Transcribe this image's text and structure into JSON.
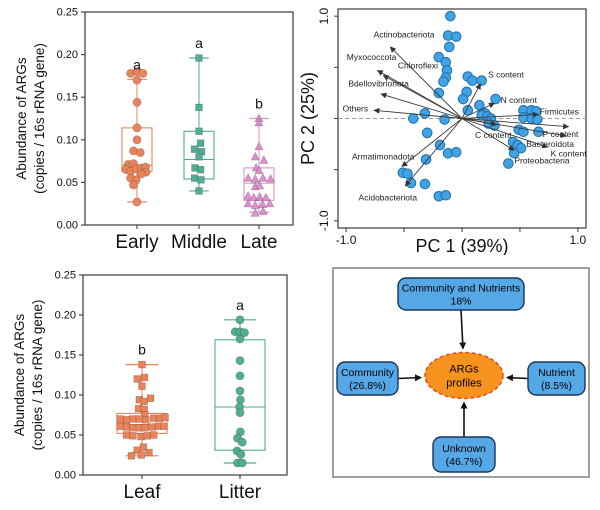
{
  "figure": {
    "background": "#ffffff"
  },
  "colors": {
    "axis": "#3a3a3a",
    "early_orange": "#E8845C",
    "middle_teal": "#4FAE93",
    "late_pink": "#DD90D0",
    "pca_point_fill": "#41A3E2",
    "pca_point_stroke": "#1F6FB0",
    "diagram_box_fill": "#55A7E6",
    "diagram_box_stroke": "#17375E",
    "diagram_ellipse_fill": "#F6921E",
    "diagram_ellipse_stroke": "#E8491D",
    "diagram_border": "#808080",
    "arrow_black": "#111111"
  },
  "chart_data": [
    {
      "id": "succession_boxplot",
      "type": "boxplot-scatter",
      "ylabel": [
        "Abundance of ARGs",
        "(copies / 16s rRNA gene)"
      ],
      "ylim": [
        0,
        0.25
      ],
      "yticks": [
        "0.00",
        "0.05",
        "0.10",
        "0.15",
        "0.20",
        "0.25"
      ],
      "groups": [
        {
          "label": "Early",
          "sig": "a",
          "marker": "circle",
          "color": "#E8845C",
          "box": {
            "lo": 0.027,
            "q1": 0.063,
            "median": 0.07,
            "q3": 0.114,
            "hi": 0.171
          },
          "points": [
            [
              -0.53,
              0.178
            ],
            [
              0,
              0.18
            ],
            [
              0.49,
              0.178
            ],
            [
              0,
              0.17
            ],
            [
              0,
              0.144
            ],
            [
              0,
              0.114
            ],
            [
              0,
              0.1
            ],
            [
              -0.29,
              0.087
            ],
            [
              0.27,
              0.085
            ],
            [
              -0.73,
              0.071
            ],
            [
              -0.29,
              0.072
            ],
            [
              -0.91,
              0.065
            ],
            [
              -0.53,
              0.063
            ],
            [
              -0.07,
              0.066
            ],
            [
              0.35,
              0.067
            ],
            [
              0.71,
              0.068
            ],
            [
              0.75,
              0.062
            ],
            [
              0.35,
              0.06
            ],
            [
              -0.53,
              0.055
            ],
            [
              -0.07,
              0.053
            ],
            [
              -0.29,
              0.047
            ],
            [
              0,
              0.027
            ]
          ]
        },
        {
          "label": "Middle",
          "sig": "a",
          "marker": "square",
          "color": "#4FAE93",
          "box": {
            "lo": 0.04,
            "q1": 0.054,
            "median": 0.077,
            "q3": 0.11,
            "hi": 0.196
          },
          "points": [
            [
              0,
              0.196
            ],
            [
              0,
              0.138
            ],
            [
              0,
              0.11
            ],
            [
              0.16,
              0.096
            ],
            [
              -0.44,
              0.089
            ],
            [
              0.25,
              0.086
            ],
            [
              0,
              0.08
            ],
            [
              -0.4,
              0.067
            ],
            [
              0.16,
              0.065
            ],
            [
              -0.44,
              0.055
            ],
            [
              0.2,
              0.053
            ],
            [
              0,
              0.04
            ]
          ]
        },
        {
          "label": "Late",
          "sig": "b",
          "marker": "triangle",
          "color": "#DD90D0",
          "box": {
            "lo": 0.015,
            "q1": 0.029,
            "median": 0.049,
            "q3": 0.067,
            "hi": 0.125
          },
          "points": [
            [
              0,
              0.125
            ],
            [
              0,
              0.12
            ],
            [
              0,
              0.092
            ],
            [
              -0.29,
              0.08
            ],
            [
              0.38,
              0.076
            ],
            [
              -0.22,
              0.067
            ],
            [
              0,
              0.064
            ],
            [
              -0.84,
              0.055
            ],
            [
              -0.29,
              0.054
            ],
            [
              0.31,
              0.055
            ],
            [
              0.89,
              0.054
            ],
            [
              -0.29,
              0.045
            ],
            [
              0.05,
              0.046
            ],
            [
              -0.84,
              0.034
            ],
            [
              -0.4,
              0.032
            ],
            [
              0.05,
              0.033
            ],
            [
              0.53,
              0.032
            ],
            [
              -0.84,
              0.025
            ],
            [
              -0.29,
              0.023
            ],
            [
              0.27,
              0.024
            ],
            [
              0.83,
              0.025
            ],
            [
              -0.29,
              0.014
            ],
            [
              0.31,
              0.016
            ]
          ]
        }
      ]
    },
    {
      "id": "pca_biplot",
      "type": "pca-biplot",
      "xlabel": "PC 1 (39%)",
      "ylabel": "PC 2 (25%)",
      "xlim": [
        -1.0,
        1.0
      ],
      "ylim": [
        -1.0,
        1.0
      ],
      "xtick_labels": [
        "-1.0",
        "1.0"
      ],
      "ytick_labels": [
        "-1.0",
        "1.0"
      ],
      "points": [
        [
          -0.1,
          1.0
        ],
        [
          -0.12,
          0.81
        ],
        [
          -0.05,
          0.8
        ],
        [
          -0.11,
          0.7
        ],
        [
          -0.2,
          0.6
        ],
        [
          -0.14,
          0.55
        ],
        [
          -0.13,
          0.47
        ],
        [
          -0.14,
          0.4
        ],
        [
          -0.16,
          0.36
        ],
        [
          0.05,
          0.41
        ],
        [
          0.09,
          0.37
        ],
        [
          0.04,
          0.26
        ],
        [
          0.01,
          0.19
        ],
        [
          0.17,
          0.37
        ],
        [
          -0.2,
          0.25
        ],
        [
          0.15,
          0.13
        ],
        [
          0.2,
          0.05
        ],
        [
          0.17,
          0.03
        ],
        [
          0.29,
          0.19
        ],
        [
          0.05,
          0.08
        ],
        [
          0.22,
          0.02
        ],
        [
          0.25,
          0.0
        ],
        [
          0.53,
          0.08
        ],
        [
          0.6,
          0.08
        ],
        [
          0.64,
          0.07
        ],
        [
          0.53,
          0.01
        ],
        [
          0.6,
          0.0
        ],
        [
          0.65,
          -0.01
        ],
        [
          -0.42,
          0.0
        ],
        [
          -0.32,
          0.05
        ],
        [
          -0.15,
          -0.01
        ],
        [
          -0.3,
          -0.14
        ],
        [
          0.23,
          -0.05
        ],
        [
          0.28,
          -0.07
        ],
        [
          0.49,
          -0.11
        ],
        [
          0.53,
          -0.13
        ],
        [
          0.66,
          -0.13
        ],
        [
          -0.19,
          -0.26
        ],
        [
          -0.12,
          -0.34
        ],
        [
          -0.05,
          -0.33
        ],
        [
          0.44,
          -0.23
        ],
        [
          0.48,
          -0.26
        ],
        [
          0.51,
          -0.29
        ],
        [
          0.45,
          -0.34
        ],
        [
          0.4,
          -0.44
        ],
        [
          -0.31,
          -0.4
        ],
        [
          -0.51,
          -0.53
        ],
        [
          -0.47,
          -0.54
        ],
        [
          -0.44,
          -0.63
        ],
        [
          -0.32,
          -0.64
        ],
        [
          -0.2,
          -0.76
        ],
        [
          -0.14,
          -0.75
        ]
      ],
      "arrows": [
        {
          "label": "Actinobacteriota",
          "tip": [
            -0.62,
            0.7
          ],
          "label_pos": [
            -0.5,
            0.82
          ]
        },
        {
          "label": "Myxococcota",
          "tip": [
            -0.73,
            0.47
          ],
          "label_pos": [
            -0.78,
            0.6
          ]
        },
        {
          "label": "Chloroflexi",
          "tip": [
            -0.68,
            0.42
          ],
          "label_pos": [
            -0.38,
            0.52
          ]
        },
        {
          "label": "Bdellovibrionota",
          "tip": [
            -0.7,
            0.24
          ],
          "label_pos": [
            -0.72,
            0.34
          ]
        },
        {
          "label": "Others",
          "tip": [
            -0.76,
            0.08
          ],
          "label_pos": [
            -0.92,
            0.1
          ]
        },
        {
          "label": "Armatimonadota",
          "tip": [
            -0.52,
            -0.47
          ],
          "label_pos": [
            -0.68,
            -0.37
          ]
        },
        {
          "label": "Acidobacteriota",
          "tip": [
            -0.49,
            -0.66
          ],
          "label_pos": [
            -0.64,
            -0.77
          ]
        },
        {
          "label": "S content",
          "tip": [
            0.16,
            0.34
          ],
          "label_pos": [
            0.38,
            0.43
          ]
        },
        {
          "label": "N content",
          "tip": [
            0.28,
            0.15
          ],
          "label_pos": [
            0.49,
            0.18
          ]
        },
        {
          "label": "Firmicutes",
          "tip": [
            0.66,
            0.04
          ],
          "label_pos": [
            0.84,
            0.07
          ]
        },
        {
          "label": "P content",
          "tip": [
            0.92,
            -0.08
          ],
          "label_pos": [
            0.85,
            -0.15
          ]
        },
        {
          "label": "Bacteroidota",
          "tip": [
            0.9,
            -0.17
          ],
          "label_pos": [
            0.76,
            -0.25
          ]
        },
        {
          "label": "K content",
          "tip": [
            0.74,
            -0.28
          ],
          "label_pos": [
            0.92,
            -0.34
          ]
        },
        {
          "label": "Proteobacteria",
          "tip": [
            0.45,
            -0.31
          ],
          "label_pos": [
            0.69,
            -0.41
          ]
        },
        {
          "label": "C content",
          "tip": [
            0.3,
            -0.06
          ],
          "label_pos": [
            0.27,
            -0.16
          ]
        }
      ]
    },
    {
      "id": "substrate_boxplot",
      "type": "boxplot-scatter",
      "ylabel": [
        "Abundance of ARGs",
        "(copies / 16s rRNA gene)"
      ],
      "ylim": [
        0,
        0.25
      ],
      "yticks": [
        "0.00",
        "0.05",
        "0.10",
        "0.15",
        "0.20",
        "0.25"
      ],
      "groups": [
        {
          "label": "Leaf",
          "sig": "b",
          "marker": "square",
          "color": "#E8845C",
          "box": {
            "lo": 0.024,
            "q1": 0.052,
            "median": 0.063,
            "q3": 0.077,
            "hi": 0.138
          },
          "points": [
            [
              0,
              0.138
            ],
            [
              -0.2,
              0.12
            ],
            [
              0.1,
              0.122
            ],
            [
              0,
              0.111
            ],
            [
              -0.11,
              0.094
            ],
            [
              0.09,
              0.092
            ],
            [
              0.36,
              0.096
            ],
            [
              -0.14,
              0.083
            ],
            [
              0.09,
              0.082
            ],
            [
              0.12,
              0.075
            ],
            [
              -0.38,
              0.07
            ],
            [
              -0.91,
              0.07
            ],
            [
              -0.64,
              0.069
            ],
            [
              -0.11,
              0.07
            ],
            [
              0.16,
              0.069
            ],
            [
              0.49,
              0.071
            ],
            [
              0.76,
              0.071
            ],
            [
              0.96,
              0.072
            ],
            [
              -0.91,
              0.061
            ],
            [
              -0.64,
              0.06
            ],
            [
              -0.38,
              0.059
            ],
            [
              -0.11,
              0.059
            ],
            [
              0.12,
              0.059
            ],
            [
              0.42,
              0.06
            ],
            [
              0.69,
              0.061
            ],
            [
              0.92,
              0.061
            ],
            [
              -0.64,
              0.05
            ],
            [
              -0.38,
              0.049
            ],
            [
              -0.04,
              0.048
            ],
            [
              0.22,
              0.049
            ],
            [
              0.49,
              0.05
            ],
            [
              0.06,
              0.035
            ],
            [
              -0.2,
              0.031
            ],
            [
              -0.44,
              0.024
            ],
            [
              -0.03,
              0.025
            ],
            [
              0.29,
              0.028
            ]
          ]
        },
        {
          "label": "Litter",
          "sig": "a",
          "marker": "circle",
          "color": "#4FAE93",
          "box": {
            "lo": 0.015,
            "q1": 0.031,
            "median": 0.085,
            "q3": 0.169,
            "hi": 0.194
          },
          "points": [
            [
              0,
              0.194
            ],
            [
              -0.35,
              0.179
            ],
            [
              0,
              0.179
            ],
            [
              0.32,
              0.178
            ],
            [
              0,
              0.17
            ],
            [
              0,
              0.143
            ],
            [
              0,
              0.124
            ],
            [
              0,
              0.105
            ],
            [
              0.03,
              0.094
            ],
            [
              -0.03,
              0.085
            ],
            [
              0,
              0.078
            ],
            [
              0.03,
              0.054
            ],
            [
              -0.18,
              0.046
            ],
            [
              0.16,
              0.041
            ],
            [
              -0.21,
              0.03
            ],
            [
              0.06,
              0.026
            ],
            [
              -0.18,
              0.015
            ],
            [
              0.16,
              0.015
            ]
          ]
        }
      ]
    },
    {
      "id": "variance_partition",
      "type": "diagram",
      "center": {
        "text": [
          "ARGs",
          "profiles"
        ]
      },
      "nodes": {
        "top": {
          "text": [
            "Community and Nutrients",
            "18%"
          ]
        },
        "left": {
          "text": [
            "Community",
            "(26.8%)"
          ]
        },
        "right": {
          "text": [
            "Nutrient",
            "(8.5%)"
          ]
        },
        "bottom": {
          "text": [
            "Unknown",
            "(46.7%)"
          ]
        }
      }
    }
  ]
}
